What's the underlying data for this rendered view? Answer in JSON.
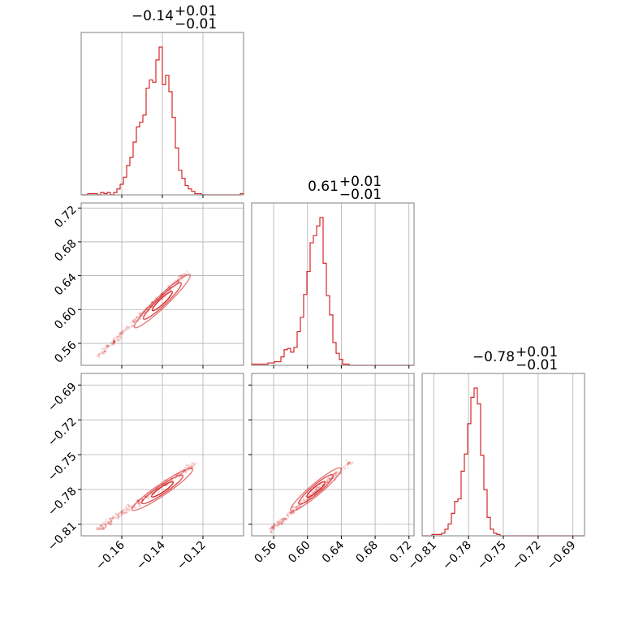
{
  "chart_data": {
    "type": "corner",
    "color": "#d62728",
    "parameters": [
      {
        "median": -0.14,
        "range": [
          -0.18,
          -0.1
        ],
        "ticks": [
          -0.16,
          -0.14,
          -0.12
        ],
        "tick_labels": [
          "−0.16",
          "−0.14",
          "−0.12"
        ]
      },
      {
        "median": 0.61,
        "range": [
          0.534,
          0.726
        ],
        "ticks": [
          0.56,
          0.6,
          0.64,
          0.68,
          0.72
        ],
        "tick_labels": [
          "0.56",
          "0.60",
          "0.64",
          "0.68",
          "0.72"
        ]
      },
      {
        "median": -0.78,
        "range": [
          -0.82,
          -0.68
        ],
        "ticks": [
          -0.81,
          -0.78,
          -0.75,
          -0.72,
          -0.69
        ],
        "tick_labels": [
          "−0.81",
          "−0.78",
          "−0.75",
          "−0.72",
          "−0.69"
        ]
      }
    ],
    "titles": [
      {
        "value": "−0.14",
        "upper": "+0.01",
        "lower": "−0.01"
      },
      {
        "value": "0.61",
        "upper": "+0.01",
        "lower": "−0.01"
      },
      {
        "value": "−0.78",
        "upper": "+0.01",
        "lower": "−0.01"
      }
    ],
    "histograms": [
      {
        "x_min": -0.18,
        "x_max": -0.1,
        "bins": 50,
        "counts": [
          0,
          0,
          1,
          1,
          1,
          0,
          2,
          1,
          2,
          0,
          2,
          5,
          9,
          15,
          25,
          32,
          45,
          58,
          62,
          68,
          91,
          98,
          96,
          115,
          126,
          94,
          102,
          88,
          66,
          40,
          21,
          14,
          8,
          5,
          3,
          1,
          1,
          0,
          0,
          0,
          0,
          0,
          0,
          0,
          0,
          0,
          0,
          0,
          0,
          1
        ]
      },
      {
        "x_min": 0.534,
        "x_max": 0.726,
        "bins": 50,
        "counts": [
          1,
          1,
          1,
          1,
          1,
          2,
          2,
          3,
          3,
          7,
          13,
          14,
          11,
          15,
          28,
          40,
          59,
          78,
          102,
          108,
          116,
          123,
          85,
          58,
          42,
          19,
          10,
          5,
          1,
          1,
          0,
          0,
          0,
          0,
          0,
          0,
          0,
          0,
          0,
          0,
          0,
          0,
          0,
          0,
          0,
          0,
          0,
          0,
          0,
          0
        ]
      },
      {
        "x_min": -0.82,
        "x_max": -0.68,
        "bins": 50,
        "counts": [
          0,
          0,
          0,
          1,
          1,
          1,
          2,
          5,
          9,
          17,
          26,
          28,
          49,
          62,
          85,
          105,
          112,
          100,
          61,
          35,
          14,
          5,
          2,
          1,
          0,
          0,
          0,
          0,
          0,
          0,
          0,
          0,
          0,
          0,
          0,
          0,
          0,
          0,
          0,
          0,
          0,
          0,
          0,
          0,
          0,
          0,
          0,
          0,
          0,
          0
        ]
      }
    ],
    "pairs": [
      {
        "x_param": 0,
        "y_param": 1,
        "center": [
          -0.14,
          0.61
        ],
        "endpoints": [
          [
            -0.172,
            0.544
          ],
          [
            -0.128,
            0.645
          ]
        ]
      },
      {
        "x_param": 0,
        "y_param": 2,
        "center": [
          -0.14,
          -0.78
        ],
        "endpoints": [
          [
            -0.172,
            -0.815
          ],
          [
            -0.124,
            -0.758
          ]
        ]
      },
      {
        "x_param": 1,
        "y_param": 2,
        "center": [
          0.61,
          -0.78
        ],
        "endpoints": [
          [
            0.556,
            -0.815
          ],
          [
            0.652,
            -0.756
          ]
        ]
      }
    ]
  }
}
